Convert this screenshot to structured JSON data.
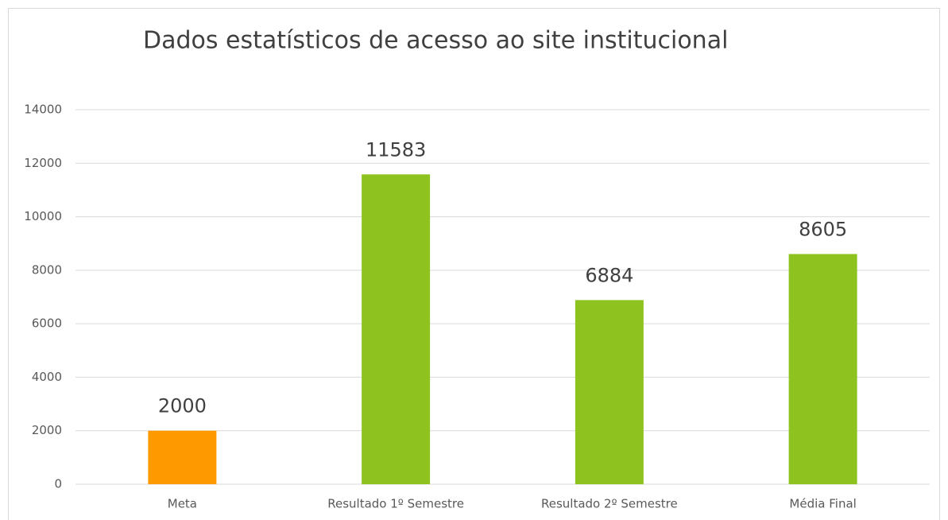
{
  "chart_data": {
    "type": "bar",
    "title": "Dados estatísticos de acesso ao site institucional",
    "categories": [
      "Meta",
      "Resultado 1º Semestre",
      "Resultado 2º Semestre",
      "Média Final"
    ],
    "values": [
      2000,
      11583,
      6884,
      8605
    ],
    "colors": [
      "#ff9900",
      "#8dc21f",
      "#8dc21f",
      "#8dc21f"
    ],
    "ylim": [
      0,
      14000
    ],
    "yticks": [
      0,
      2000,
      4000,
      6000,
      8000,
      10000,
      12000,
      14000
    ],
    "grid": true
  }
}
